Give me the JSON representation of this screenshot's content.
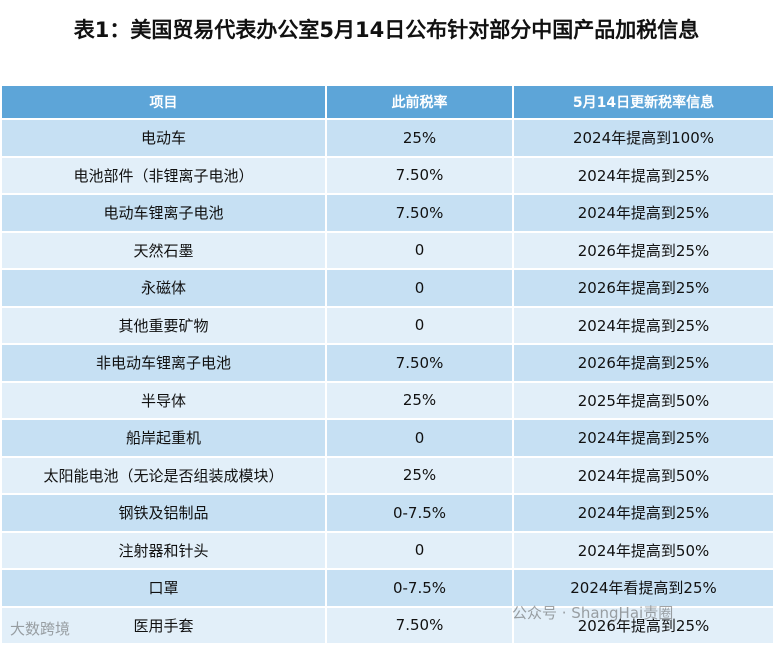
{
  "header": {
    "title": "表1：美国贸易代表办公室5月14日公布针对部分中国产品加税信息"
  },
  "table": {
    "columns": [
      "项目",
      "此前税率",
      "5月14日更新税率信息"
    ],
    "rows": [
      [
        "电动车",
        "25%",
        "2024年提高到100%"
      ],
      [
        "电池部件（非锂离子电池）",
        "7.50%",
        "2024年提高到25%"
      ],
      [
        "电动车锂离子电池",
        "7.50%",
        "2024年提高到25%"
      ],
      [
        "天然石墨",
        "0",
        "2026年提高到25%"
      ],
      [
        "永磁体",
        "0",
        "2026年提高到25%"
      ],
      [
        "其他重要矿物",
        "0",
        "2024年提高到25%"
      ],
      [
        "非电动车锂离子电池",
        "7.50%",
        "2026年提高到25%"
      ],
      [
        "半导体",
        "25%",
        "2025年提高到50%"
      ],
      [
        "船岸起重机",
        "0",
        "2024年提高到25%"
      ],
      [
        "太阳能电池（无论是否组装成模块）",
        "25%",
        "2024年提高到50%"
      ],
      [
        "钢铁及铝制品",
        "0-7.5%",
        "2024年提高到25%"
      ],
      [
        "注射器和针头",
        "0",
        "2024年提高到50%"
      ],
      [
        "口罩",
        "0-7.5%",
        "2024年看提高到25%"
      ],
      [
        "医用手套",
        "7.50%",
        "2026年提高到25%"
      ]
    ]
  },
  "watermarks": [
    "大数跨境",
    "公众号 · ShangHai责圈"
  ]
}
